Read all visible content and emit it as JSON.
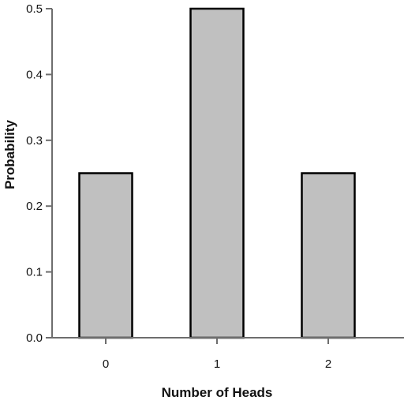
{
  "chart_data": {
    "type": "bar",
    "categories": [
      "0",
      "1",
      "2"
    ],
    "values": [
      0.25,
      0.5,
      0.25
    ],
    "title": "",
    "xlabel": "Number of Heads",
    "ylabel": "Probability",
    "ylim": [
      0,
      0.5
    ],
    "yticks": [
      0.0,
      0.1,
      0.2,
      0.3,
      0.4,
      0.5
    ],
    "ytick_labels": [
      "0.0",
      "0.1",
      "0.2",
      "0.3",
      "0.4",
      "0.5"
    ],
    "grid": false,
    "bar_color": "#c0c0c0",
    "bar_edge_color": "#000000"
  }
}
